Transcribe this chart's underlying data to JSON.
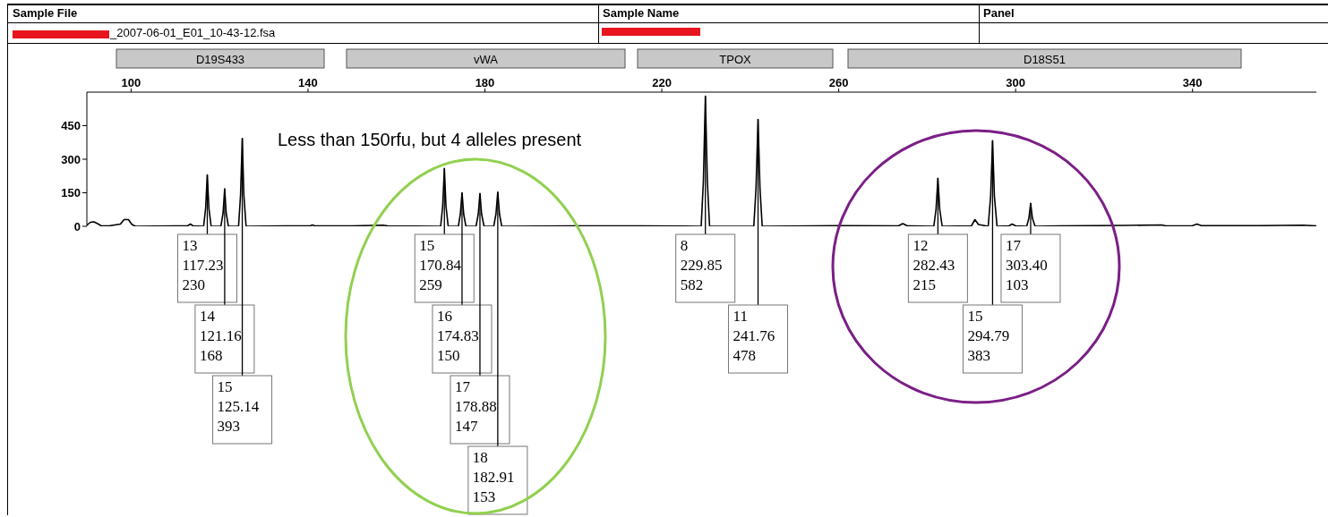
{
  "chart_data": {
    "type": "line",
    "annotations": [
      "Sample File",
      "Sample Name",
      "Panel",
      "_2007-06-01_E01_10-43-12.fsa",
      "Less than 150rfu, but 4 alleles present",
      "D19S433",
      "vWA",
      "TPOX",
      "D18S51",
      {
        "text": "13\n117.23\n230",
        "x": 117.23,
        "y": 230
      },
      {
        "text": "14\n121.16\n168",
        "x": 121.16,
        "y": 168
      },
      {
        "text": "15\n125.14\n393",
        "x": 125.14,
        "y": 393
      },
      {
        "text": "15\n170.84\n259",
        "x": 170.84,
        "y": 259
      },
      {
        "text": "16\n174.83\n150",
        "x": 174.83,
        "y": 150
      },
      {
        "text": "17\n178.88\n147",
        "x": 178.88,
        "y": 147
      },
      {
        "text": "18\n182.91\n153",
        "x": 182.91,
        "y": 153
      },
      {
        "text": "8\n229.85\n582",
        "x": 229.85,
        "y": 582
      },
      {
        "text": "11\n241.76\n478",
        "x": 241.76,
        "y": 478
      },
      {
        "text": "12\n282.43\n215",
        "x": 282.43,
        "y": 215
      },
      {
        "text": "15\n294.79\n383",
        "x": 294.79,
        "y": 383
      },
      {
        "text": "17\n303.40\n103",
        "x": 303.4,
        "y": 103
      }
    ],
    "x": [
      90,
      90.8,
      91.6,
      92.4,
      93.2,
      95,
      97.6,
      98.4,
      99.4,
      100.2,
      101,
      110,
      112.8,
      113.4,
      114,
      116.4,
      116.85,
      117.23,
      117.6,
      118.1,
      120.3,
      120.8,
      121.16,
      121.5,
      122,
      124.3,
      124.75,
      125.14,
      125.5,
      126,
      135,
      140.5,
      141,
      141.5,
      150,
      157,
      158,
      170,
      170.45,
      170.84,
      171.2,
      171.7,
      174,
      174.45,
      174.83,
      175.2,
      175.7,
      178,
      178.5,
      178.88,
      179.25,
      179.8,
      182,
      182.5,
      182.91,
      183.3,
      183.8,
      200,
      215,
      228.9,
      229.4,
      229.85,
      230.3,
      230.8,
      240.8,
      241.3,
      241.76,
      242.2,
      242.7,
      260,
      273.5,
      274.5,
      275.5,
      281.5,
      282,
      282.43,
      282.85,
      283.4,
      290,
      290.8,
      291.6,
      293.8,
      294.35,
      294.79,
      295.2,
      295.8,
      298.5,
      299.2,
      300,
      302.5,
      303,
      303.4,
      303.8,
      304.4,
      310,
      325,
      333,
      334,
      340,
      341,
      342,
      355,
      365,
      368
    ],
    "series": [
      {
        "color": "#000000",
        "values": [
          5,
          18,
          20,
          12,
          3,
          2,
          10,
          30,
          30,
          8,
          0,
          2,
          2,
          10,
          2,
          0,
          80,
          230,
          80,
          0,
          0,
          60,
          168,
          60,
          0,
          0,
          140,
          393,
          140,
          0,
          2,
          2,
          6,
          2,
          2,
          5,
          2,
          0,
          90,
          259,
          90,
          0,
          0,
          55,
          150,
          55,
          0,
          0,
          55,
          147,
          55,
          0,
          0,
          55,
          153,
          55,
          0,
          2,
          2,
          0,
          200,
          582,
          200,
          0,
          0,
          170,
          478,
          170,
          0,
          3,
          2,
          12,
          2,
          0,
          75,
          215,
          75,
          0,
          2,
          30,
          8,
          0,
          135,
          383,
          135,
          0,
          2,
          10,
          2,
          0,
          36,
          103,
          36,
          0,
          2,
          4,
          6,
          2,
          3,
          10,
          3,
          3,
          5,
          2
        ]
      }
    ],
    "xlim": [
      90,
      368
    ],
    "xticks": [
      100,
      140,
      180,
      220,
      260,
      300,
      340
    ],
    "ylim": [
      0,
      600
    ],
    "yticks": [
      0,
      150,
      300,
      450
    ]
  }
}
